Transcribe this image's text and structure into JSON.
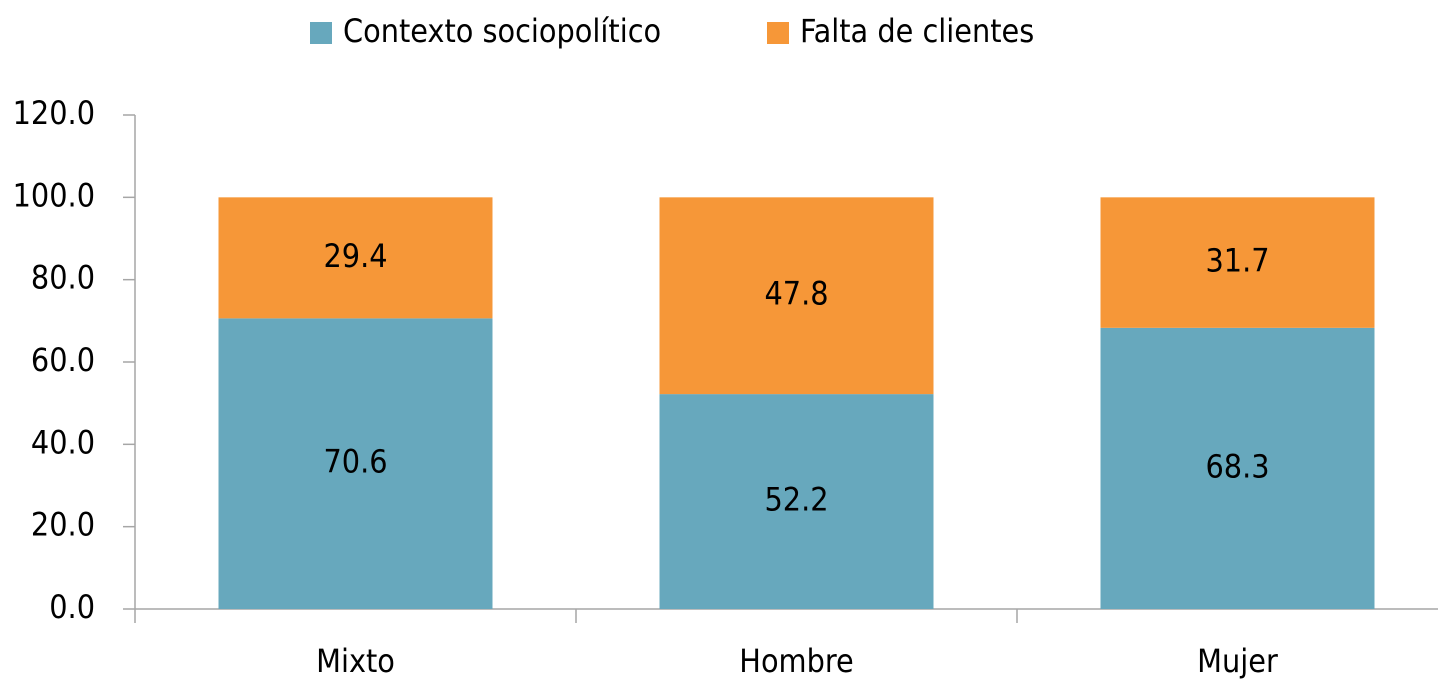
{
  "chart_data": {
    "type": "stacked_bar",
    "categories": [
      "Mixto",
      "Hombre",
      "Mujer"
    ],
    "series": [
      {
        "name": "Contexto sociopolítico",
        "color": "#67a8bd",
        "values": [
          70.6,
          52.2,
          68.3
        ]
      },
      {
        "name": "Falta de clientes",
        "color": "#f69738",
        "values": [
          29.4,
          47.8,
          31.7
        ]
      }
    ],
    "ylim": [
      0,
      120
    ],
    "yticks": [
      {
        "value": 0,
        "label": "0.0"
      },
      {
        "value": 20,
        "label": "20.0"
      },
      {
        "value": 40,
        "label": "40.0"
      },
      {
        "value": 60,
        "label": "60.0"
      },
      {
        "value": 80,
        "label": "80.0"
      },
      {
        "value": 100,
        "label": "100.0"
      },
      {
        "value": 120,
        "label": "120.0"
      }
    ],
    "legend": "top"
  }
}
